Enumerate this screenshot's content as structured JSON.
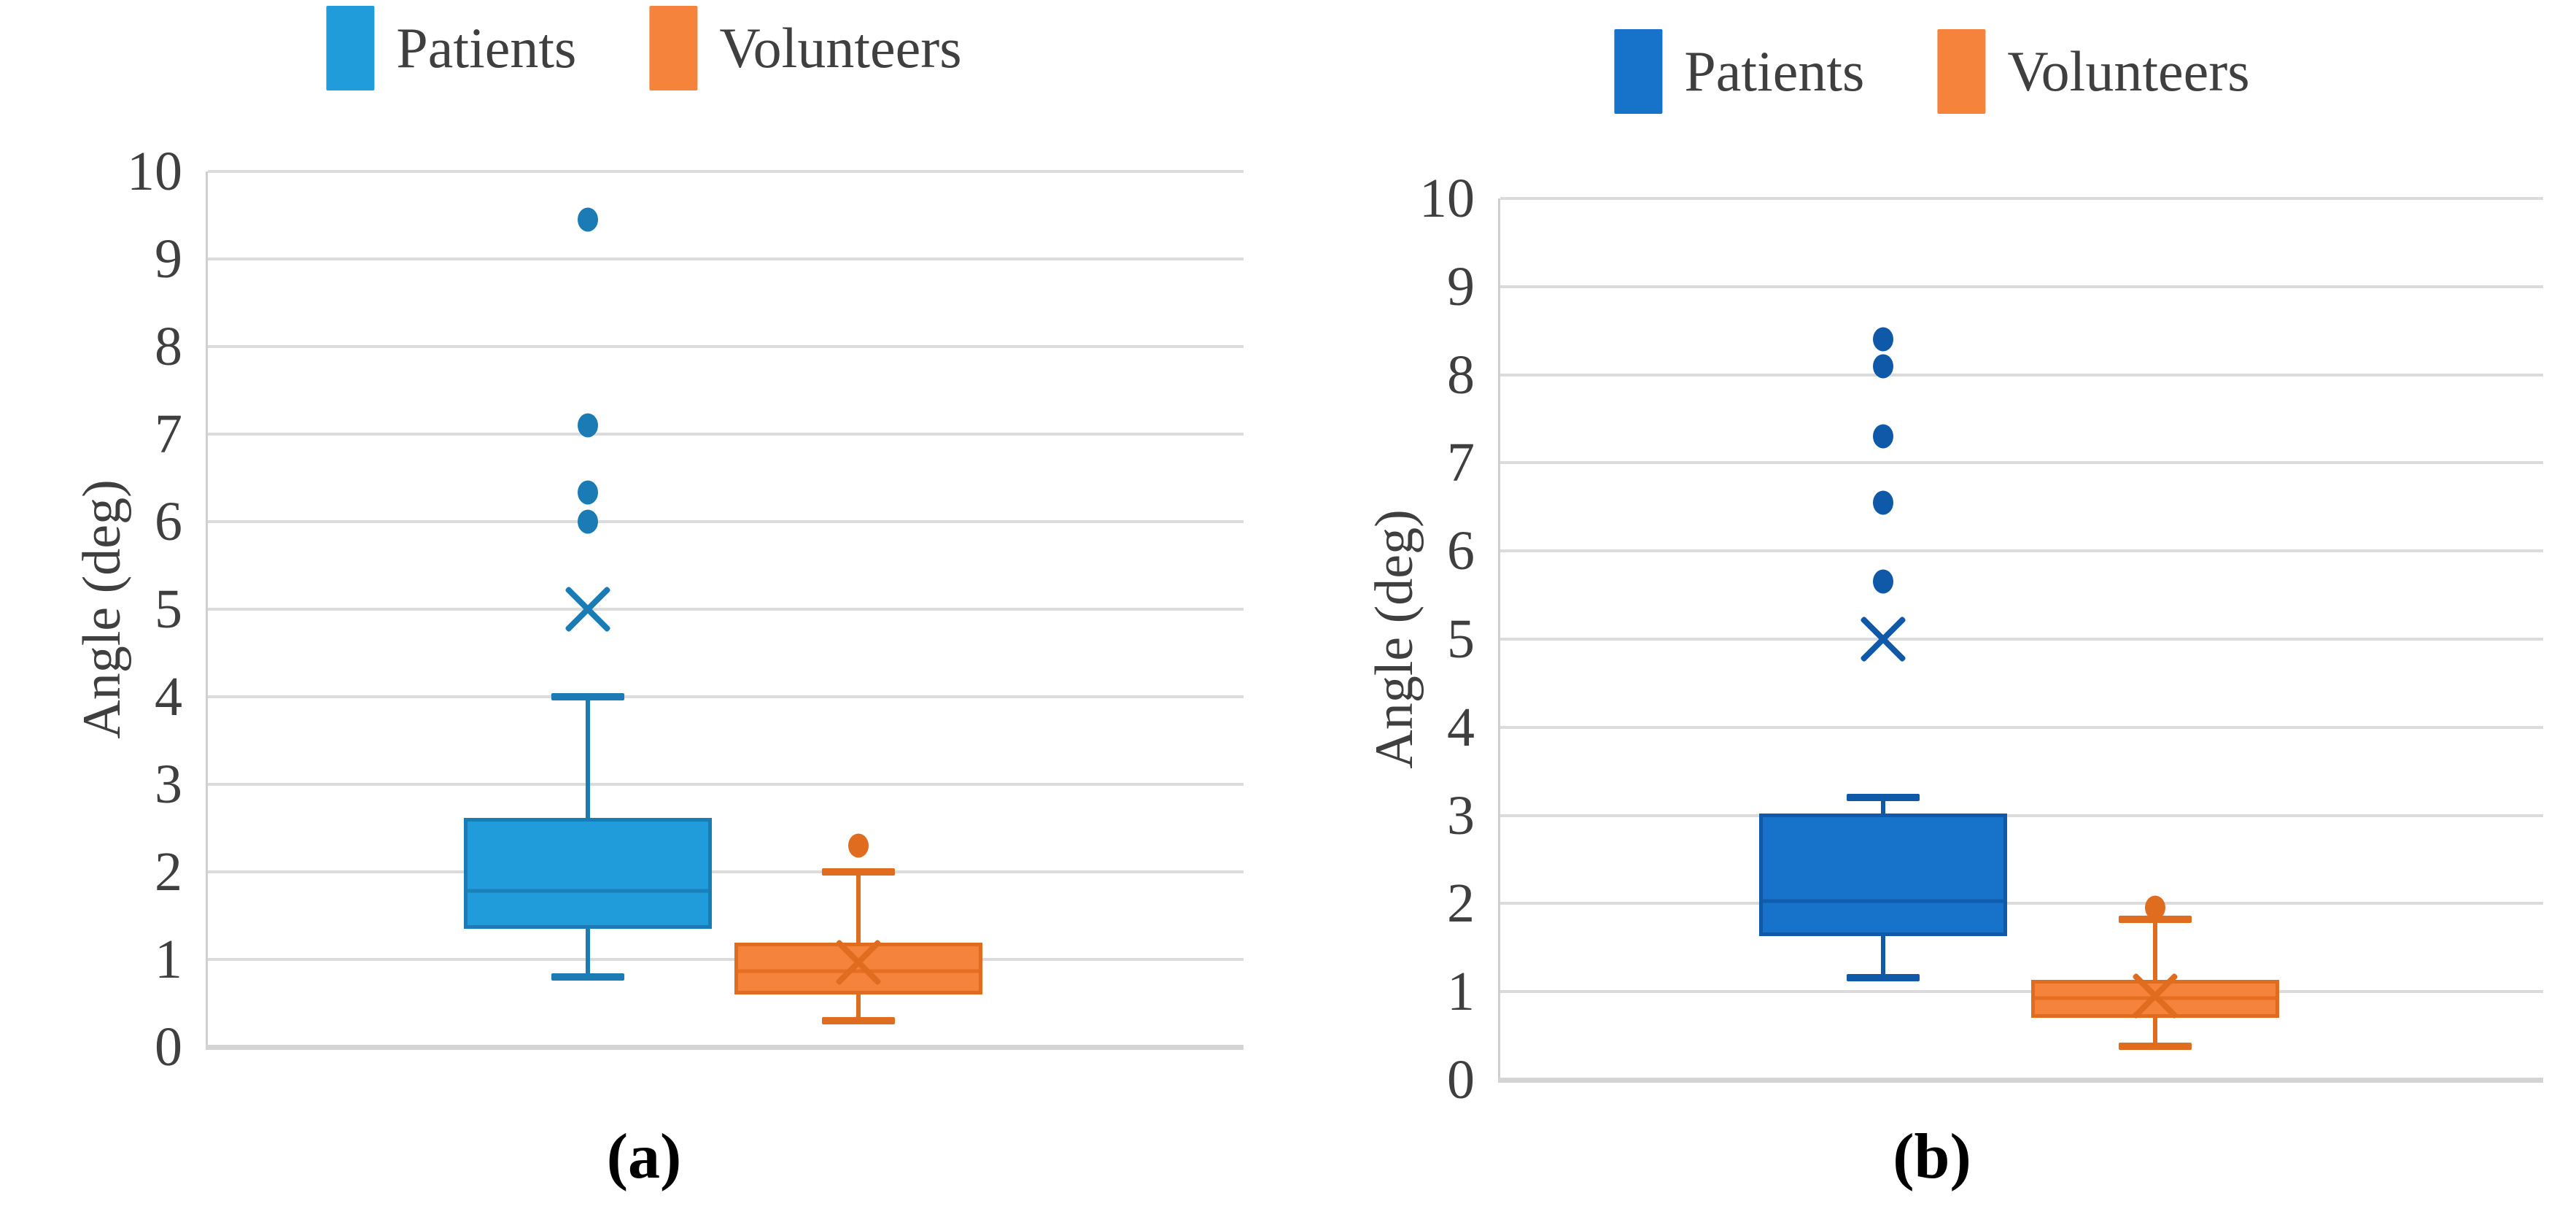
{
  "figure_caption_a": "(a)",
  "figure_caption_b": "(b)",
  "colors": {
    "panel_a_patients": "#1F9CD9",
    "panel_b_patients": "#1673C9",
    "volunteers": "#F5833C",
    "gridline": "#DBDBDB",
    "axis": "#CFCFCF",
    "text": "#3F3F3F"
  },
  "chart_data": [
    {
      "type": "box",
      "panel": "a",
      "caption": "(a)",
      "ylabel": "Angle (deg)",
      "ylim": [
        0,
        10
      ],
      "yticks": [
        0,
        1,
        2,
        3,
        4,
        5,
        6,
        7,
        8,
        9,
        10
      ],
      "grid": true,
      "legend_position": "top",
      "legend": [
        "Patients",
        "Volunteers"
      ],
      "series": [
        {
          "name": "Patients",
          "fill": "#1F9CD9",
          "stroke": "#1B7CB5",
          "whisker_low": 0.8,
          "q1": 1.35,
          "median": 1.78,
          "q3": 2.62,
          "whisker_high": 4.0,
          "mean": 5.0,
          "outliers": [
            6.0,
            6.33,
            7.1,
            9.45
          ]
        },
        {
          "name": "Volunteers",
          "fill": "#F5833C",
          "stroke": "#E06C1F",
          "whisker_low": 0.3,
          "q1": 0.6,
          "median": 0.87,
          "q3": 1.19,
          "whisker_high": 2.0,
          "mean": 0.97,
          "outliers": [
            2.3
          ]
        }
      ]
    },
    {
      "type": "box",
      "panel": "b",
      "caption": "(b)",
      "ylabel": "Angle (deg)",
      "ylim": [
        0,
        10
      ],
      "yticks": [
        0,
        1,
        2,
        3,
        4,
        5,
        6,
        7,
        8,
        9,
        10
      ],
      "grid": true,
      "legend_position": "top",
      "legend": [
        "Patients",
        "Volunteers"
      ],
      "series": [
        {
          "name": "Patients",
          "fill": "#1673C9",
          "stroke": "#1059A8",
          "whisker_low": 1.16,
          "q1": 1.63,
          "median": 2.03,
          "q3": 3.02,
          "whisker_high": 3.2,
          "mean": 5.0,
          "outliers": [
            5.65,
            6.55,
            7.3,
            8.1,
            8.4
          ]
        },
        {
          "name": "Volunteers",
          "fill": "#F5833C",
          "stroke": "#E06C1F",
          "whisker_low": 0.38,
          "q1": 0.7,
          "median": 0.93,
          "q3": 1.13,
          "whisker_high": 1.82,
          "mean": 0.95,
          "outliers": [
            1.95
          ]
        }
      ]
    }
  ]
}
